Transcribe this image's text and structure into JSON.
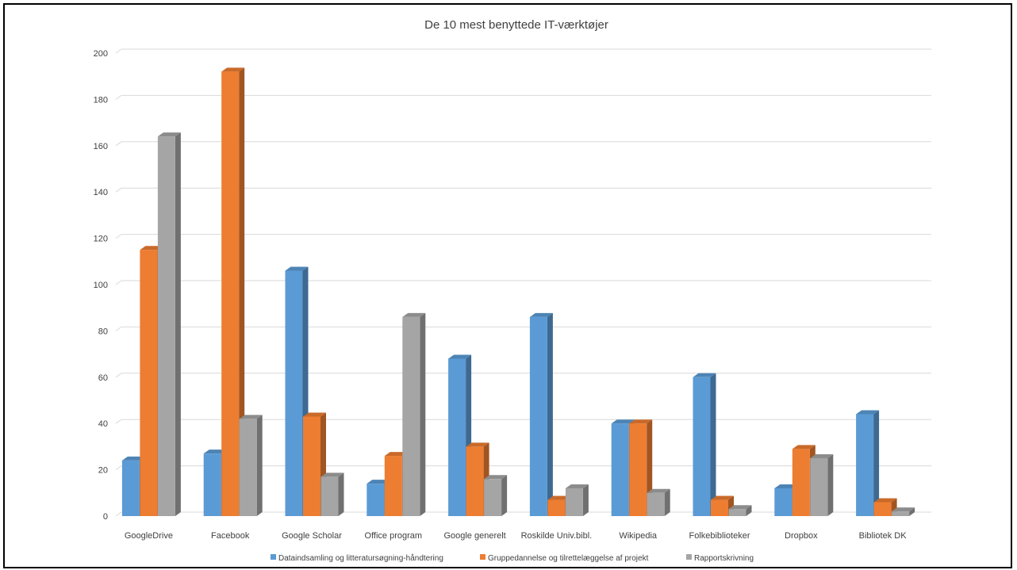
{
  "chart_data": {
    "type": "bar",
    "title": "De 10 mest benyttede IT-værktøjer",
    "categories": [
      "GoogleDrive",
      "Facebook",
      "Google Scholar",
      "Office program",
      "Google generelt",
      "Roskilde Univ.bibl.",
      "Wikipedia",
      "Folkebiblioteker",
      "Dropbox",
      "Bibliotek DK"
    ],
    "series": [
      {
        "name": "Dataindsamling og litteratursøgning-håndtering",
        "color": "#5B9BD5",
        "values": [
          24,
          27,
          106,
          14,
          68,
          86,
          40,
          60,
          12,
          44
        ]
      },
      {
        "name": "Gruppedannelse og tilrettelæggelse af projekt",
        "color": "#ED7D31",
        "values": [
          115,
          192,
          43,
          26,
          30,
          7,
          40,
          7,
          29,
          6
        ]
      },
      {
        "name": "Rapportskrivning",
        "color": "#A5A5A5",
        "values": [
          164,
          42,
          17,
          86,
          16,
          12,
          10,
          3,
          25,
          2
        ]
      }
    ],
    "ylim": [
      0,
      200
    ],
    "yticks": [
      "0",
      "20",
      "40",
      "60",
      "80",
      "100",
      "120",
      "140",
      "160",
      "180",
      "200"
    ],
    "grid": true,
    "legend_position": "bottom",
    "style": "3d-column"
  }
}
